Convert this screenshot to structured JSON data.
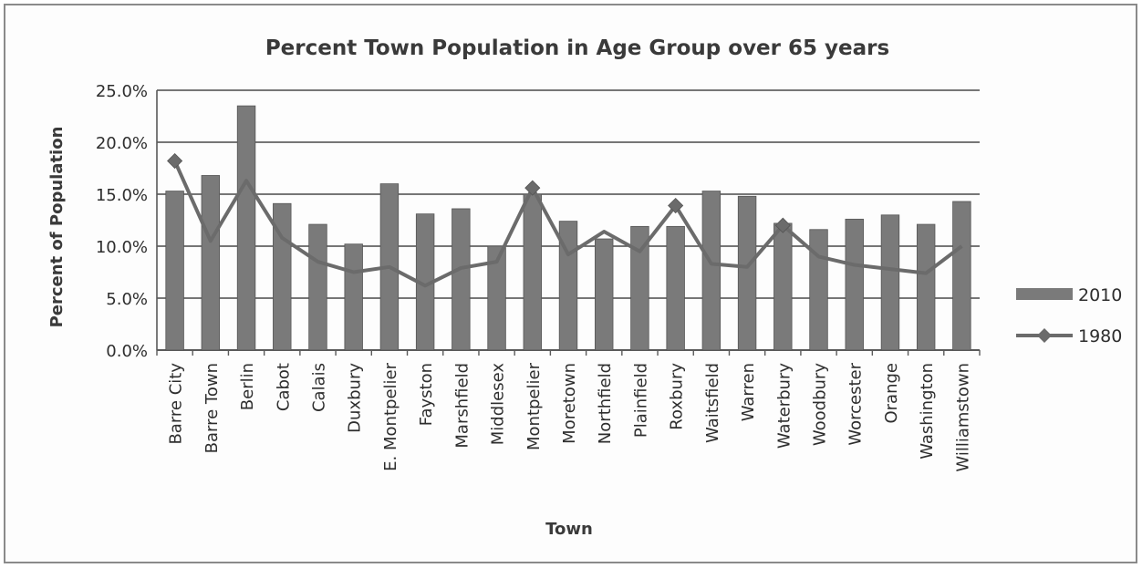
{
  "chart_data": {
    "type": "bar",
    "title": "Percent Town Population in Age Group over 65 years",
    "xlabel": "Town",
    "ylabel": "Percent of Population",
    "ylim": [
      0,
      25
    ],
    "y_ticks": [
      "0.0%",
      "5.0%",
      "10.0%",
      "15.0%",
      "20.0%",
      "25.0%"
    ],
    "grid": true,
    "legend_position": "right",
    "categories": [
      "Barre City",
      "Barre Town",
      "Berlin",
      "Cabot",
      "Calais",
      "Duxbury",
      "E. Montpelier",
      "Fayston",
      "Marshfield",
      "Middlesex",
      "Montpelier",
      "Moretown",
      "Northfield",
      "Plainfield",
      "Roxbury",
      "Waitsfield",
      "Warren",
      "Waterbury",
      "Woodbury",
      "Worcester",
      "Orange",
      "Washington",
      "Williamstown"
    ],
    "series": [
      {
        "name": "2010",
        "kind": "bar",
        "color": "#7a7a7a",
        "values": [
          15.3,
          16.8,
          23.5,
          14.1,
          12.1,
          10.2,
          16.0,
          13.1,
          13.6,
          10.0,
          15.0,
          12.4,
          10.7,
          11.9,
          11.9,
          15.3,
          14.8,
          12.2,
          11.6,
          12.6,
          13.0,
          12.1,
          14.3
        ]
      },
      {
        "name": "1980",
        "kind": "line",
        "color": "#6b6b6b",
        "marker": "diamond",
        "values": [
          18.2,
          10.5,
          16.3,
          10.8,
          8.5,
          7.5,
          8.0,
          6.2,
          7.9,
          8.5,
          15.6,
          9.2,
          11.4,
          9.5,
          13.9,
          8.3,
          8.0,
          12.0,
          9.0,
          8.2,
          7.8,
          7.4,
          10.0
        ]
      }
    ]
  }
}
